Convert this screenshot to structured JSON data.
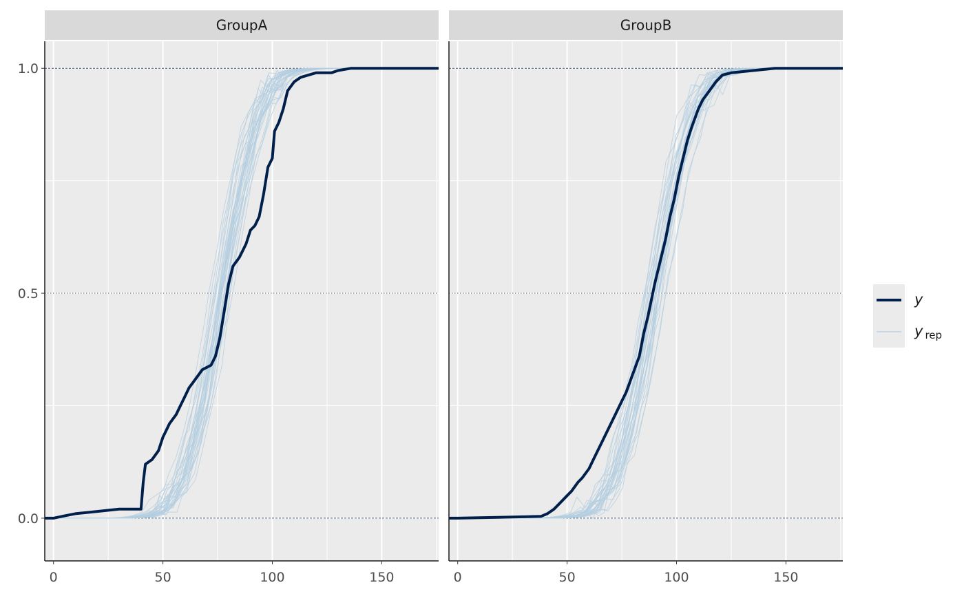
{
  "chart_data": {
    "type": "line",
    "subtype": "ecdf_overlay",
    "x_axis": {
      "range": [
        -4,
        176
      ],
      "ticks": [
        0,
        50,
        100,
        150
      ]
    },
    "y_axis": {
      "range": [
        -0.095,
        1.06
      ],
      "ticks": [
        0.0,
        0.5,
        1.0
      ],
      "tick_labels": [
        "0.0",
        "0.5",
        "1.0"
      ]
    },
    "reference_lines": [
      0,
      0.5,
      1
    ],
    "grid": true,
    "legend": {
      "position": "right",
      "items": [
        {
          "label": "y",
          "subscript": "",
          "color": "#011f4b",
          "series": "y"
        },
        {
          "label": "y",
          "subscript": "rep",
          "color": "#b3cde0",
          "series": "yrep"
        }
      ]
    },
    "colors": {
      "y": "#011f4b",
      "yrep": "#b3cde0",
      "panel_bg": "#ebebeb",
      "strip_bg": "#d9d9d9"
    },
    "panels": [
      {
        "label": "GroupA",
        "y": {
          "x": [
            -4,
            0,
            5,
            10,
            20,
            30,
            40,
            41,
            42,
            45,
            48,
            50,
            51,
            53,
            56,
            58,
            60,
            62,
            65,
            68,
            72,
            74,
            76,
            78,
            80,
            82,
            85,
            88,
            90,
            92,
            94,
            96,
            98,
            100,
            101,
            103,
            105,
            107,
            110,
            113,
            120,
            127,
            130,
            136,
            150,
            176
          ],
          "y": [
            0,
            0,
            0.005,
            0.01,
            0.015,
            0.02,
            0.02,
            0.08,
            0.12,
            0.13,
            0.15,
            0.18,
            0.19,
            0.21,
            0.23,
            0.25,
            0.27,
            0.29,
            0.31,
            0.33,
            0.34,
            0.36,
            0.4,
            0.46,
            0.52,
            0.56,
            0.58,
            0.61,
            0.64,
            0.65,
            0.67,
            0.72,
            0.78,
            0.8,
            0.86,
            0.88,
            0.91,
            0.95,
            0.97,
            0.98,
            0.99,
            0.99,
            0.995,
            1.0,
            1.0,
            1.0
          ]
        },
        "yrep_center": {
          "mu": 77,
          "sigma": 13.5
        }
      },
      {
        "label": "GroupB",
        "y": {
          "x": [
            -4,
            0,
            10,
            20,
            30,
            38,
            41,
            44,
            46,
            48,
            50,
            52,
            55,
            57,
            60,
            62,
            65,
            68,
            70,
            72,
            75,
            77,
            80,
            83,
            85,
            87,
            90,
            92,
            95,
            97,
            99,
            101,
            103,
            105,
            107,
            110,
            112,
            115,
            118,
            121,
            125,
            135,
            145,
            176
          ],
          "y": [
            0,
            0,
            0.001,
            0.002,
            0.003,
            0.004,
            0.01,
            0.02,
            0.03,
            0.04,
            0.05,
            0.06,
            0.08,
            0.09,
            0.11,
            0.13,
            0.16,
            0.19,
            0.21,
            0.23,
            0.26,
            0.28,
            0.32,
            0.36,
            0.41,
            0.45,
            0.52,
            0.56,
            0.62,
            0.67,
            0.71,
            0.76,
            0.8,
            0.84,
            0.87,
            0.91,
            0.93,
            0.95,
            0.97,
            0.985,
            0.99,
            0.995,
            1.0,
            1.0
          ]
        },
        "yrep_center": {
          "mu": 91,
          "sigma": 14
        }
      }
    ]
  }
}
